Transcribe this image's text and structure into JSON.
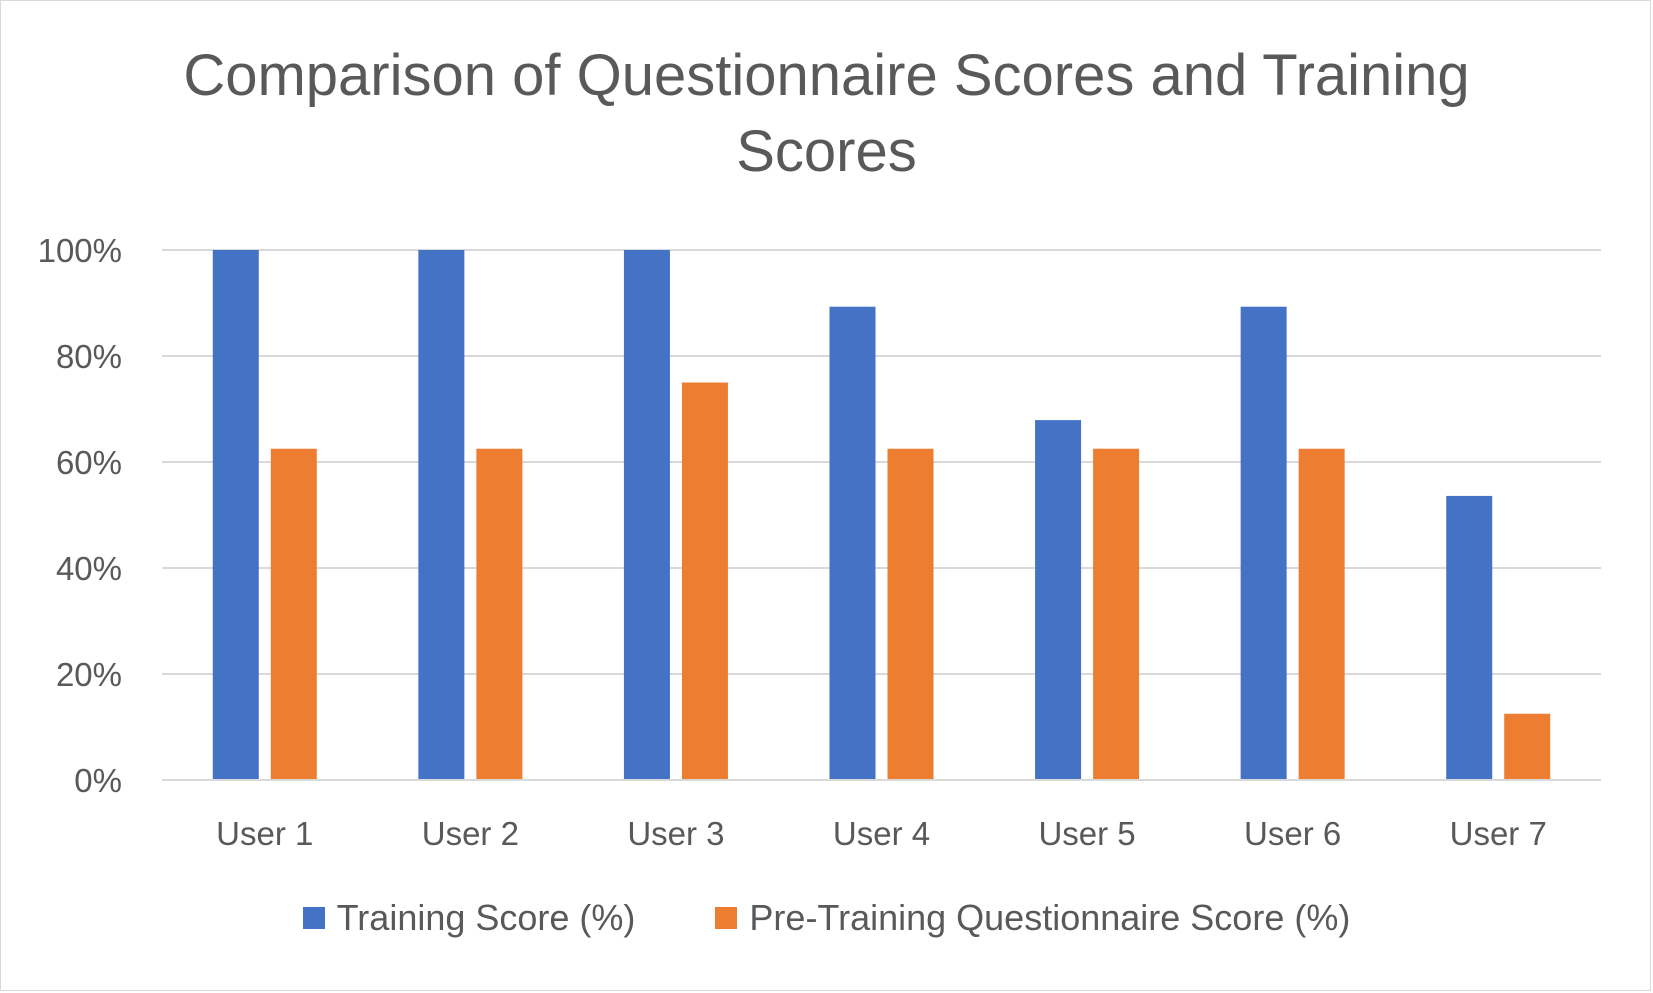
{
  "chart_data": {
    "type": "bar",
    "title": "Comparison of Questionnaire Scores and Training Scores",
    "title_lines": [
      "Comparison of Questionnaire Scores and Training",
      "Scores"
    ],
    "categories": [
      "User 1",
      "User 2",
      "User 3",
      "User 4",
      "User 5",
      "User 6",
      "User 7"
    ],
    "series": [
      {
        "name": "Training Score (%)",
        "color": "#4472C4",
        "values": [
          100,
          100,
          100,
          89.3,
          67.9,
          89.3,
          53.6
        ]
      },
      {
        "name": "Pre-Training Questionnaire Score (%)",
        "color": "#ED7D31",
        "values": [
          62.5,
          62.5,
          75,
          62.5,
          62.5,
          62.5,
          12.5
        ]
      }
    ],
    "ylim": [
      0,
      100
    ],
    "yticks": [
      0,
      20,
      40,
      60,
      80,
      100
    ],
    "ytick_labels": [
      "0%",
      "20%",
      "40%",
      "60%",
      "80%",
      "100%"
    ],
    "xlabel": "",
    "ylabel": "",
    "grid": true,
    "legend_position": "bottom"
  }
}
